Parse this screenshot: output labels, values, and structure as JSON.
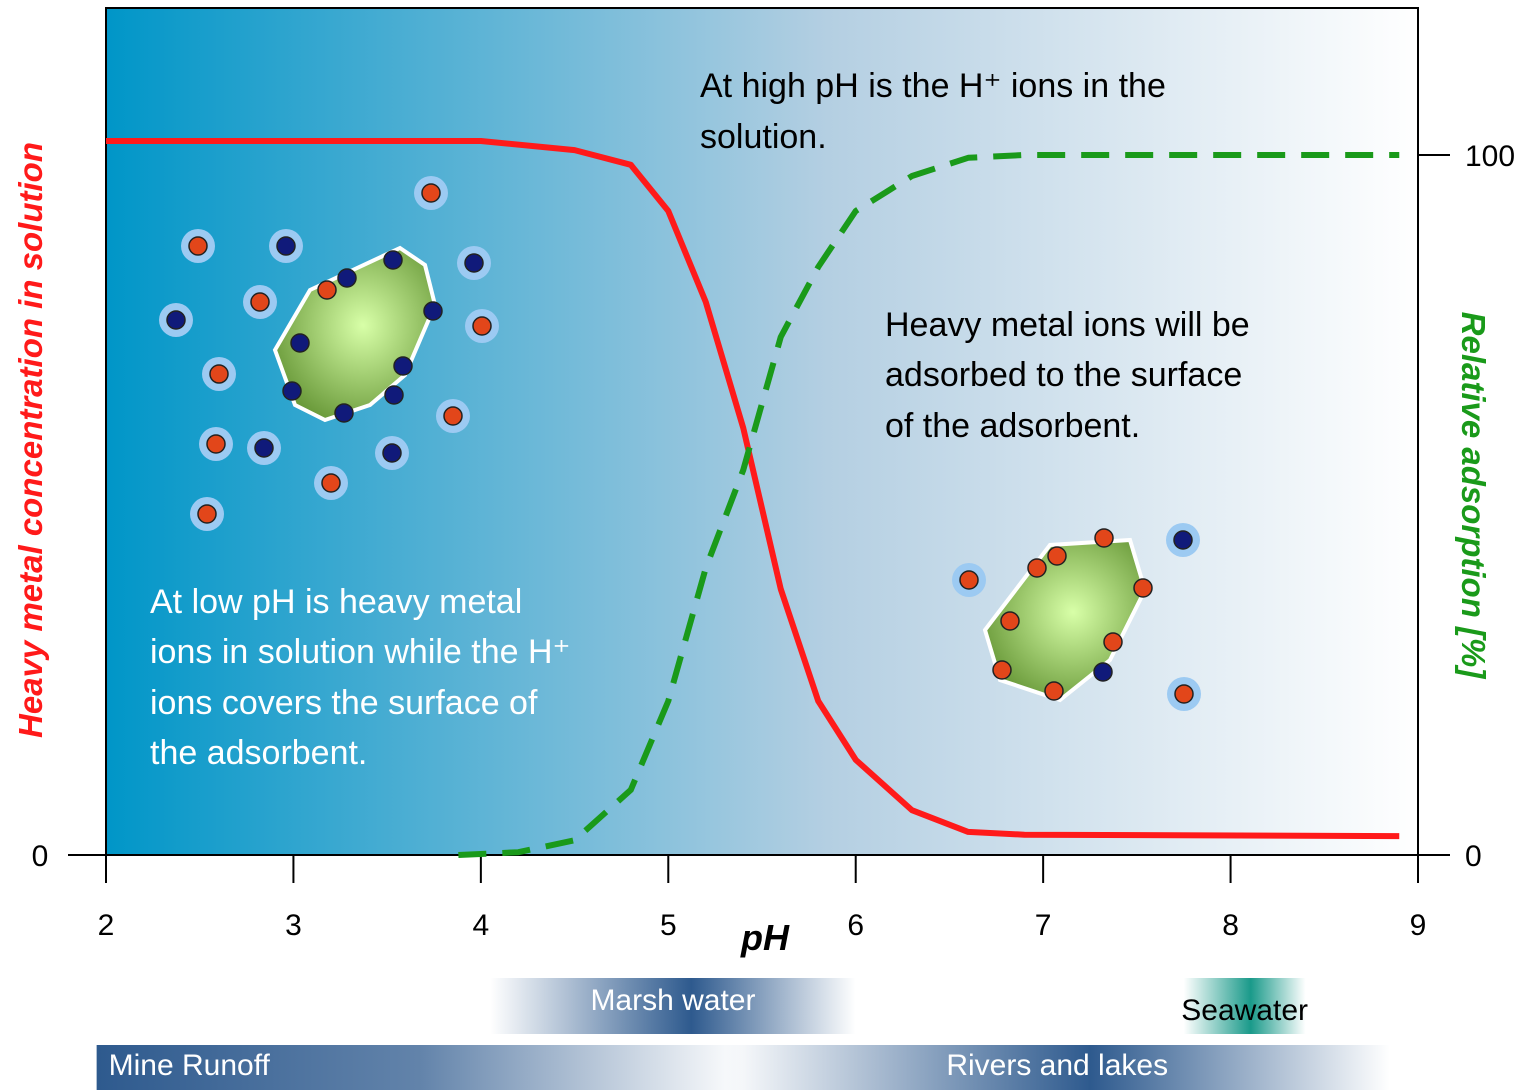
{
  "chart_data": {
    "type": "line",
    "ylabel": "Heavy metal concentration in solution",
    "y2label": "Relative adsorption [%]",
    "xlabel": "pH",
    "xlim": [
      2,
      9
    ],
    "xticks": [
      2,
      3,
      4,
      5,
      6,
      7,
      8,
      9
    ],
    "ylim": [
      0,
      121
    ],
    "yticks": [
      0
    ],
    "y2lim": [
      0,
      121
    ],
    "y2ticks": [
      0,
      100
    ],
    "series": [
      {
        "name": "Heavy metal concentration in solution",
        "color": "#ff1a1a",
        "dash": false,
        "x": [
          2.0,
          4.0,
          4.5,
          4.8,
          5.0,
          5.2,
          5.4,
          5.6,
          5.8,
          6.0,
          6.3,
          6.6,
          6.9,
          8.9
        ],
        "values": [
          102,
          102,
          100.7,
          98.6,
          92,
          79,
          61,
          38,
          22,
          13.6,
          6.4,
          3.3,
          2.9,
          2.7
        ]
      },
      {
        "name": "Relative adsorption [%]",
        "color": "#1a9a1a",
        "dash": true,
        "axis": "y2",
        "x": [
          3.88,
          4.2,
          4.5,
          4.8,
          5.0,
          5.2,
          5.4,
          5.6,
          5.8,
          6.0,
          6.3,
          6.6,
          6.9,
          8.9
        ],
        "values": [
          0,
          0.4,
          2.1,
          9.3,
          22,
          41,
          55,
          74,
          84,
          92,
          97,
          99.6,
          100,
          100
        ]
      }
    ],
    "annotations": [
      "At high pH is the H⁺ ions in the",
      "solution.",
      "Heavy metal ions will be",
      "adsorbed to the surface",
      "of the adsorbent.",
      "At low pH is heavy metal",
      "ions in solution while the H⁺",
      "ions covers the surface of",
      "the adsorbent."
    ],
    "ph_ranges": [
      {
        "label": "Marsh water",
        "from": 4.05,
        "to": 6.0,
        "color": "#2e5a8e",
        "row": 0
      },
      {
        "label": "Seawater",
        "from": 7.75,
        "to": 8.4,
        "color": "#1a9a8a",
        "row": 0
      },
      {
        "label": "Mine Runoff",
        "from": 1.95,
        "to": 5.4,
        "color": "#2e5a8e",
        "row": 1
      },
      {
        "label": "Rivers and lakes",
        "from": 5.3,
        "to": 8.85,
        "color": "#2e5a8e",
        "row": 1
      }
    ]
  }
}
